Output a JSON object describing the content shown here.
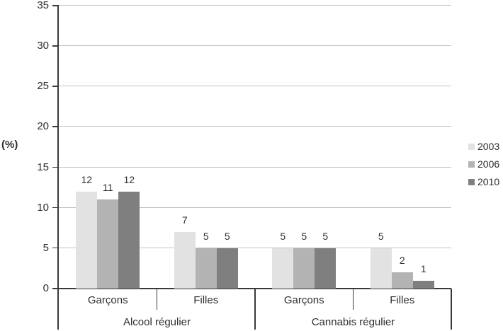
{
  "chart_data": {
    "type": "bar",
    "title": "",
    "ylabel": "(%)",
    "ylim": [
      0,
      35
    ],
    "ytick_interval": 5,
    "yticks": [
      0,
      5,
      10,
      15,
      20,
      25,
      30,
      35
    ],
    "categories": [
      "Garçons",
      "Filles",
      "Garçons",
      "Filles"
    ],
    "category_groups": [
      {
        "label": "Alcool régulier",
        "span": 2
      },
      {
        "label": "Cannabis régulier",
        "span": 2
      }
    ],
    "series": [
      {
        "name": "2003",
        "color": "#e2e2e2",
        "values": [
          12,
          7,
          5,
          5
        ]
      },
      {
        "name": "2006",
        "color": "#b3b3b3",
        "values": [
          11,
          5,
          5,
          2
        ]
      },
      {
        "name": "2010",
        "color": "#7f7f7f",
        "values": [
          12,
          5,
          5,
          1
        ]
      }
    ],
    "data_labels": true,
    "grid": true,
    "legend_position": "right",
    "colors": {
      "axis": "#3a3a3a",
      "gridline": "#c3c3c3",
      "text": "#2e2e2e"
    }
  }
}
